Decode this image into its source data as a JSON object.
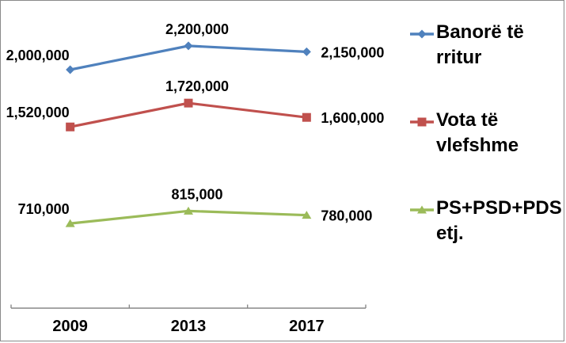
{
  "chart_data": {
    "type": "line",
    "title": "",
    "xlabel": "",
    "ylabel": "",
    "categories": [
      "2009",
      "2013",
      "2017"
    ],
    "series": [
      {
        "name": "Banorë të rritur",
        "values": [
          2000000,
          2200000,
          2150000
        ],
        "data_labels": [
          "2,000,000",
          "2,200,000",
          "2,150,000"
        ],
        "color": "#4F81BD",
        "marker": "diamond"
      },
      {
        "name": "Vota të vlefshme",
        "values": [
          1520000,
          1720000,
          1600000
        ],
        "data_labels": [
          "1,520,000",
          "1,720,000",
          "1,600,000"
        ],
        "color": "#C0504D",
        "marker": "square"
      },
      {
        "name": "PS+PSD+PDS etj.",
        "values": [
          710000,
          815000,
          780000
        ],
        "data_labels": [
          "710,000",
          "815,000",
          "780,000"
        ],
        "color": "#9BBB59",
        "marker": "triangle"
      }
    ],
    "ylim": [
      0,
      2600000
    ],
    "grid": false,
    "legend_position": "right",
    "data_labels_shown": true
  },
  "style": {
    "axis_color": "#898989",
    "border_color": "#8a8a8a",
    "text_color": "#000000",
    "background": "#ffffff"
  }
}
